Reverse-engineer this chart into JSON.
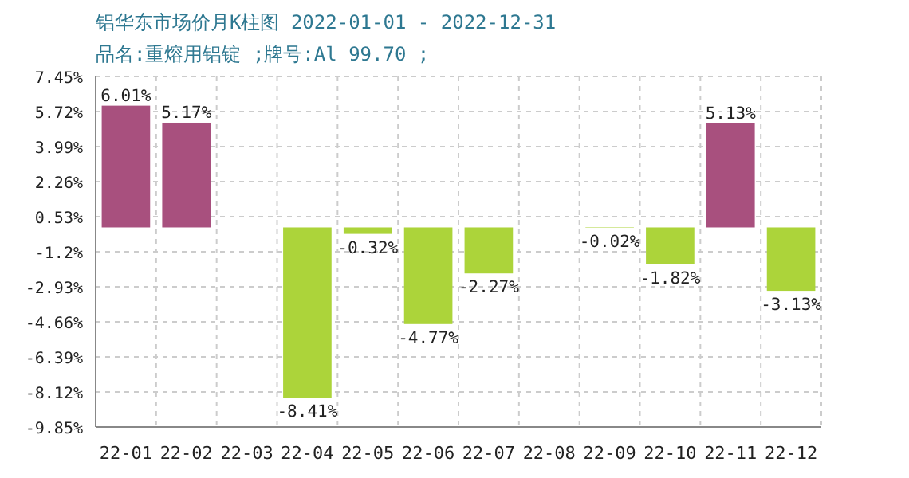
{
  "chart_data": {
    "type": "bar",
    "title": "铝华东市场价月K柱图 2022-01-01 - 2022-12-31",
    "subtitle": "品名:重熔用铝锭 ;牌号:Al 99.70 ;",
    "categories": [
      "22-01",
      "22-02",
      "22-03",
      "22-04",
      "22-05",
      "22-06",
      "22-07",
      "22-08",
      "22-09",
      "22-10",
      "22-11",
      "22-12"
    ],
    "values": [
      6.01,
      5.17,
      null,
      -8.41,
      -0.32,
      -4.77,
      -2.27,
      null,
      -0.02,
      -1.82,
      5.13,
      -3.13
    ],
    "value_labels": [
      "6.01%",
      "5.17%",
      null,
      "-8.41%",
      "-0.32%",
      "-4.77%",
      "-2.27%",
      null,
      "-0.02%",
      "-1.82%",
      "5.13%",
      "-3.13%"
    ],
    "colors": [
      "#a8507e",
      "#a8507e",
      null,
      "#acd43a",
      "#acd43a",
      "#acd43a",
      "#acd43a",
      null,
      "#acd43a",
      "#acd43a",
      "#a8507e",
      "#acd43a"
    ],
    "ylim": [
      -9.85,
      7.45
    ],
    "yticks": [
      {
        "value": 7.45,
        "label": "7.45%"
      },
      {
        "value": 5.72,
        "label": "5.72%"
      },
      {
        "value": 3.99,
        "label": "3.99%"
      },
      {
        "value": 2.26,
        "label": "2.26%"
      },
      {
        "value": 0.53,
        "label": "0.53%"
      },
      {
        "value": -1.2,
        "label": "-1.2%"
      },
      {
        "value": -2.93,
        "label": "-2.93%"
      },
      {
        "value": -4.66,
        "label": "-4.66%"
      },
      {
        "value": -6.39,
        "label": "-6.39%"
      },
      {
        "value": -8.12,
        "label": "-8.12%"
      },
      {
        "value": -9.85,
        "label": "-9.85%"
      }
    ],
    "grid": true
  }
}
